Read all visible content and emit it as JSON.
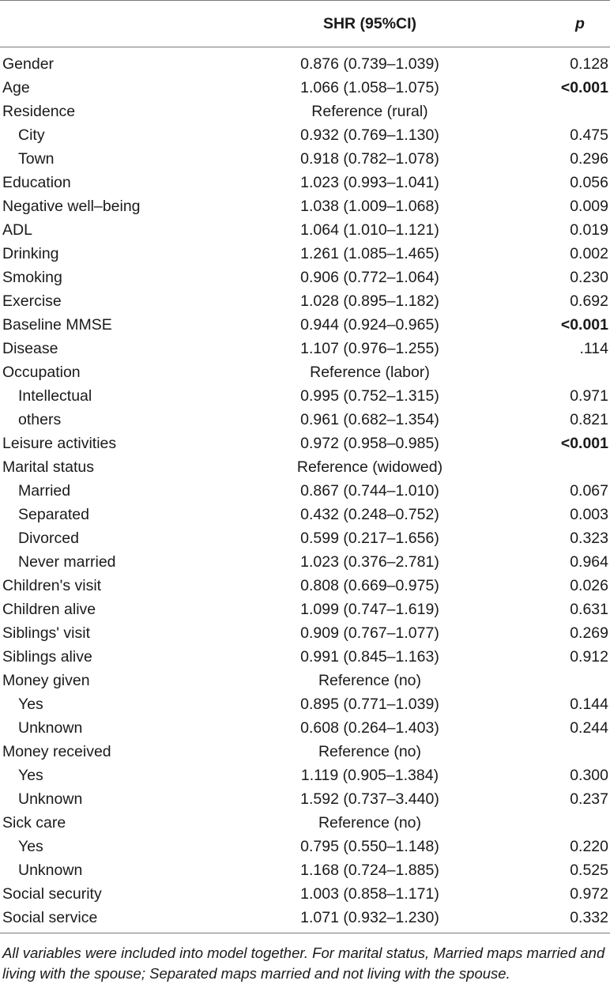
{
  "header": {
    "col_variable": "",
    "col_shr": "SHR (95%CI)",
    "col_p": "p"
  },
  "rows": [
    {
      "label": "Gender",
      "shr": "0.876 (0.739–1.039)",
      "p": "0.128",
      "indent": false,
      "bold_p": false
    },
    {
      "label": "Age",
      "shr": "1.066 (1.058–1.075)",
      "p": "<0.001",
      "indent": false,
      "bold_p": true
    },
    {
      "label": "Residence",
      "shr": "Reference (rural)",
      "p": "",
      "indent": false,
      "bold_p": false
    },
    {
      "label": "City",
      "shr": "0.932 (0.769–1.130)",
      "p": "0.475",
      "indent": true,
      "bold_p": false
    },
    {
      "label": "Town",
      "shr": "0.918 (0.782–1.078)",
      "p": "0.296",
      "indent": true,
      "bold_p": false
    },
    {
      "label": "Education",
      "shr": "1.023 (0.993–1.041)",
      "p": "0.056",
      "indent": false,
      "bold_p": false
    },
    {
      "label": "Negative well–being",
      "shr": "1.038 (1.009–1.068)",
      "p": "0.009",
      "indent": false,
      "bold_p": false
    },
    {
      "label": "ADL",
      "shr": "1.064 (1.010–1.121)",
      "p": "0.019",
      "indent": false,
      "bold_p": false
    },
    {
      "label": "Drinking",
      "shr": "1.261 (1.085–1.465)",
      "p": "0.002",
      "indent": false,
      "bold_p": false
    },
    {
      "label": "Smoking",
      "shr": "0.906 (0.772–1.064)",
      "p": "0.230",
      "indent": false,
      "bold_p": false
    },
    {
      "label": "Exercise",
      "shr": "1.028 (0.895–1.182)",
      "p": "0.692",
      "indent": false,
      "bold_p": false
    },
    {
      "label": "Baseline MMSE",
      "shr": "0.944 (0.924–0.965)",
      "p": "<0.001",
      "indent": false,
      "bold_p": true
    },
    {
      "label": "Disease",
      "shr": "1.107 (0.976–1.255)",
      "p": ".114",
      "indent": false,
      "bold_p": false
    },
    {
      "label": "Occupation",
      "shr": "Reference (labor)",
      "p": "",
      "indent": false,
      "bold_p": false
    },
    {
      "label": "Intellectual",
      "shr": "0.995 (0.752–1.315)",
      "p": "0.971",
      "indent": true,
      "bold_p": false
    },
    {
      "label": "others",
      "shr": "0.961 (0.682–1.354)",
      "p": "0.821",
      "indent": true,
      "bold_p": false
    },
    {
      "label": "Leisure activities",
      "shr": "0.972 (0.958–0.985)",
      "p": "<0.001",
      "indent": false,
      "bold_p": true
    },
    {
      "label": "Marital status",
      "shr": "Reference (widowed)",
      "p": "",
      "indent": false,
      "bold_p": false
    },
    {
      "label": "Married",
      "shr": "0.867 (0.744–1.010)",
      "p": "0.067",
      "indent": true,
      "bold_p": false
    },
    {
      "label": "Separated",
      "shr": "0.432 (0.248–0.752)",
      "p": "0.003",
      "indent": true,
      "bold_p": false
    },
    {
      "label": "Divorced",
      "shr": "0.599 (0.217–1.656)",
      "p": "0.323",
      "indent": true,
      "bold_p": false
    },
    {
      "label": "Never married",
      "shr": "1.023 (0.376–2.781)",
      "p": "0.964",
      "indent": true,
      "bold_p": false
    },
    {
      "label": "Children's visit",
      "shr": "0.808 (0.669–0.975)",
      "p": "0.026",
      "indent": false,
      "bold_p": false
    },
    {
      "label": "Children alive",
      "shr": "1.099 (0.747–1.619)",
      "p": "0.631",
      "indent": false,
      "bold_p": false
    },
    {
      "label": "Siblings' visit",
      "shr": "0.909 (0.767–1.077)",
      "p": "0.269",
      "indent": false,
      "bold_p": false
    },
    {
      "label": "Siblings alive",
      "shr": "0.991 (0.845–1.163)",
      "p": "0.912",
      "indent": false,
      "bold_p": false
    },
    {
      "label": "Money given",
      "shr": "Reference (no)",
      "p": "",
      "indent": false,
      "bold_p": false
    },
    {
      "label": "Yes",
      "shr": "0.895 (0.771–1.039)",
      "p": "0.144",
      "indent": true,
      "bold_p": false
    },
    {
      "label": "Unknown",
      "shr": "0.608 (0.264–1.403)",
      "p": "0.244",
      "indent": true,
      "bold_p": false
    },
    {
      "label": "Money received",
      "shr": "Reference (no)",
      "p": "",
      "indent": false,
      "bold_p": false
    },
    {
      "label": "Yes",
      "shr": "1.119 (0.905–1.384)",
      "p": "0.300",
      "indent": true,
      "bold_p": false
    },
    {
      "label": "Unknown",
      "shr": "1.592 (0.737–3.440)",
      "p": "0.237",
      "indent": true,
      "bold_p": false
    },
    {
      "label": "Sick care",
      "shr": "Reference (no)",
      "p": "",
      "indent": false,
      "bold_p": false
    },
    {
      "label": "Yes",
      "shr": "0.795 (0.550–1.148)",
      "p": "0.220",
      "indent": true,
      "bold_p": false
    },
    {
      "label": "Unknown",
      "shr": "1.168 (0.724–1.885)",
      "p": "0.525",
      "indent": true,
      "bold_p": false
    },
    {
      "label": "Social security",
      "shr": "1.003 (0.858–1.171)",
      "p": "0.972",
      "indent": false,
      "bold_p": false
    },
    {
      "label": "Social service",
      "shr": "1.071 (0.932–1.230)",
      "p": "0.332",
      "indent": false,
      "bold_p": false
    }
  ],
  "footnote": "All variables were included into model together. For marital status, Married maps married and living with the spouse; Separated maps married and not living with the spouse."
}
